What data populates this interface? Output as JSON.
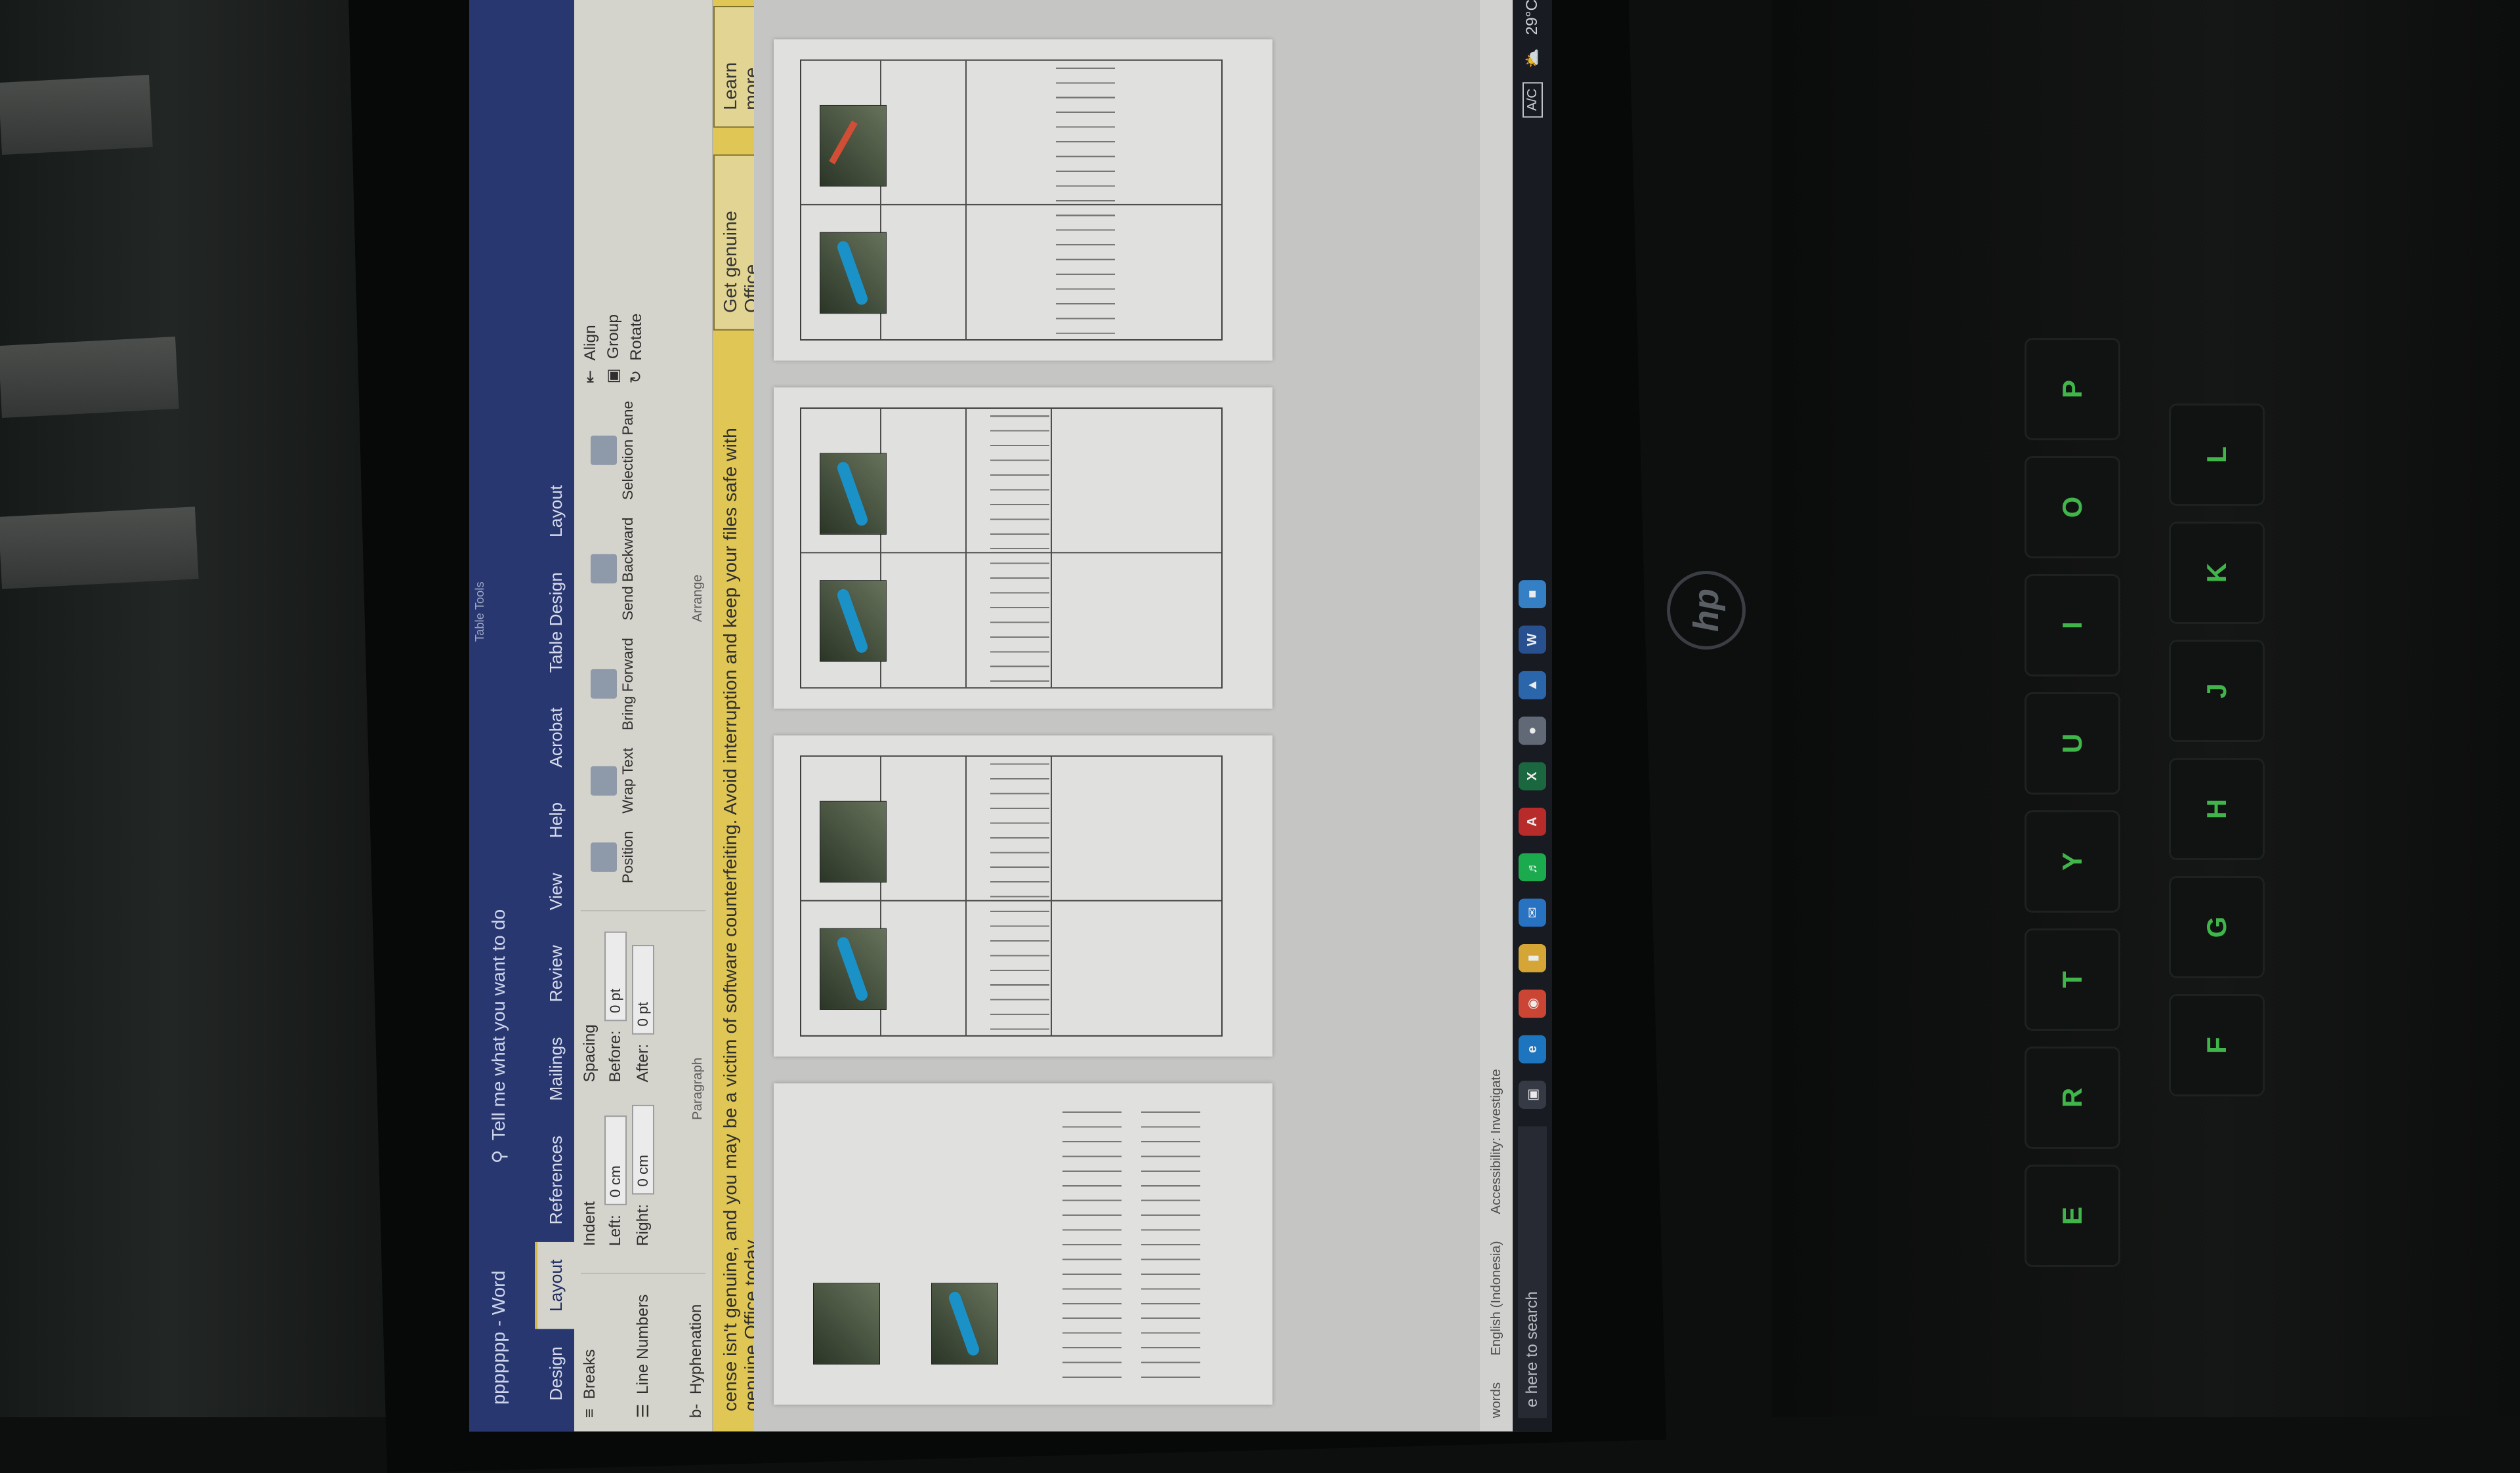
{
  "window": {
    "doc_title": "ppppppp - Word",
    "context_label": "Table Tools",
    "tell_me": "Tell me what you want to do"
  },
  "ribbon_tabs": [
    "Design",
    "Layout",
    "References",
    "Mailings",
    "Review",
    "View",
    "Help",
    "Acrobat",
    "Table Design",
    "Layout"
  ],
  "ribbon": {
    "page_setup": {
      "breaks": "Breaks",
      "line_numbers": "Line Numbers",
      "hyphenation": "Hyphenation"
    },
    "indent": {
      "label": "Indent",
      "left_label": "Left:",
      "left_value": "0 cm",
      "right_label": "Right:",
      "right_value": "0 cm"
    },
    "spacing": {
      "label": "Spacing",
      "before_label": "Before:",
      "before_value": "0 pt",
      "after_label": "After:",
      "after_value": "0 pt"
    },
    "paragraph_group": "Paragraph",
    "arrange": {
      "position": "Position",
      "wrap_text": "Wrap Text",
      "bring_forward": "Bring Forward",
      "send_backward": "Send Backward",
      "selection_pane": "Selection Pane",
      "align": "Align",
      "group": "Group",
      "rotate": "Rotate",
      "group_label": "Arrange"
    }
  },
  "notice": {
    "text": "cense isn't genuine, and you may be a victim of software counterfeiting. Avoid interruption and keep your files safe with genuine Office today.",
    "get_genuine": "Get genuine Office",
    "learn_more": "Learn more"
  },
  "statusbar": {
    "words": "words",
    "language": "English (Indonesia)",
    "accessibility": "Accessibility: Investigate"
  },
  "taskbar": {
    "search": "e here to search",
    "ac_label": "A/C",
    "temperature": "29°C"
  },
  "keyboard_keys": [
    "P",
    "O",
    "I",
    "U",
    "Y",
    "T",
    "R",
    "E",
    "L",
    "K",
    "J",
    "H",
    "G",
    "F"
  ],
  "brand": "hp"
}
